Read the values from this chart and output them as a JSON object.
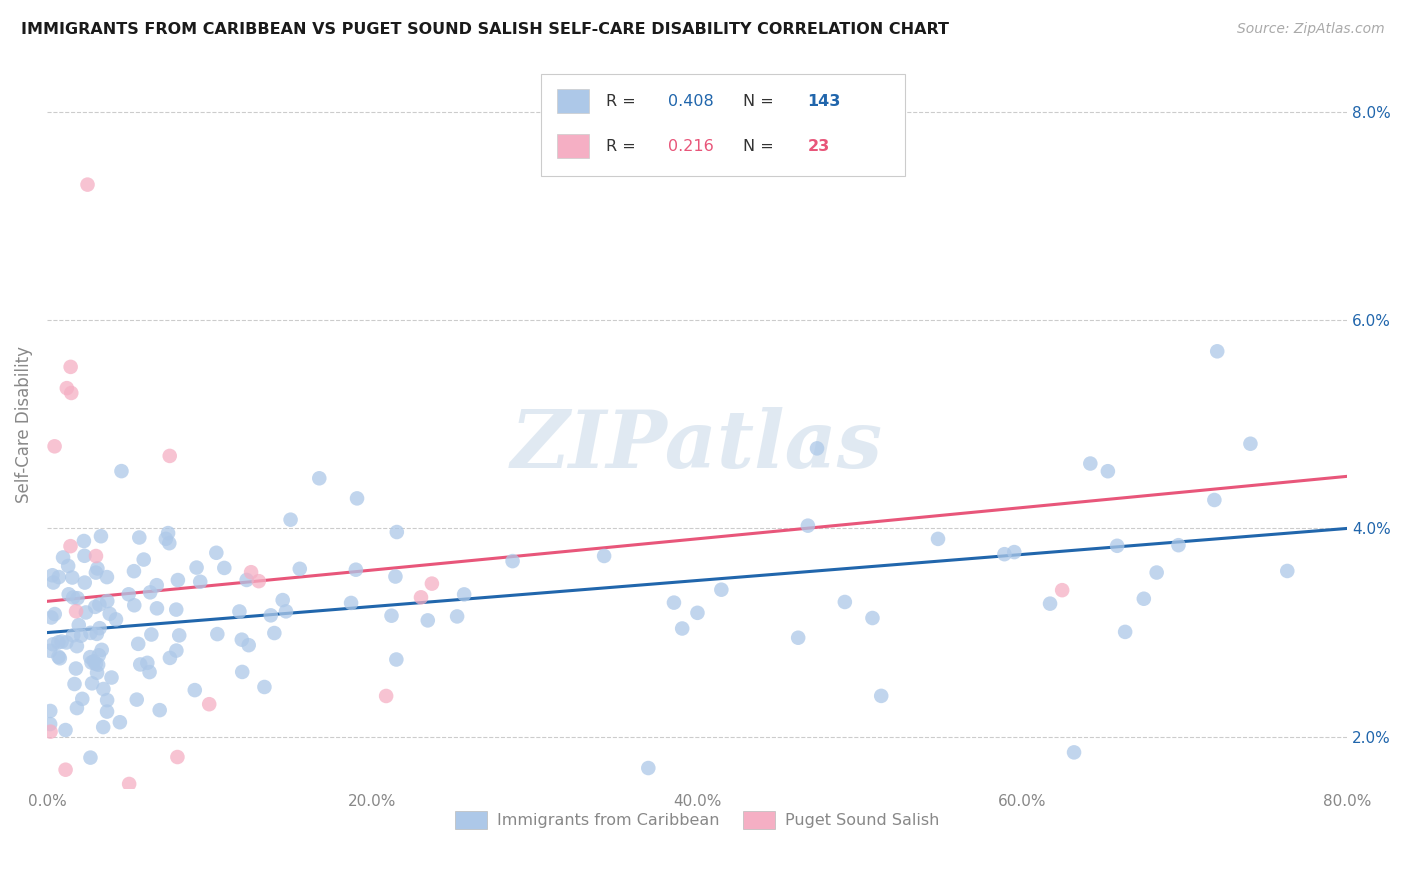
{
  "title": "IMMIGRANTS FROM CARIBBEAN VS PUGET SOUND SALISH SELF-CARE DISABILITY CORRELATION CHART",
  "source": "Source: ZipAtlas.com",
  "ylabel": "Self-Care Disability",
  "legend_blue_R": "0.408",
  "legend_blue_N": "143",
  "legend_pink_R": "0.216",
  "legend_pink_N": "23",
  "legend_label_blue": "Immigrants from Caribbean",
  "legend_label_pink": "Puget Sound Salish",
  "blue_color": "#adc8e8",
  "pink_color": "#f5afc4",
  "blue_line_color": "#2166ac",
  "pink_line_color": "#e8567a",
  "watermark": "ZIPatlas",
  "xlim": [
    0,
    80
  ],
  "ylim": [
    1.5,
    8.5
  ],
  "xticks": [
    0,
    20,
    40,
    60,
    80
  ],
  "xtick_labels": [
    "0.0%",
    "20.0%",
    "40.0%",
    "60.0%",
    "80.0%"
  ],
  "yticks": [
    2.0,
    4.0,
    6.0,
    8.0
  ],
  "ytick_labels": [
    "2.0%",
    "4.0%",
    "6.0%",
    "8.0%"
  ],
  "background_color": "#ffffff",
  "grid_color": "#cccccc",
  "blue_line_start_y": 3.0,
  "blue_line_end_y": 4.0,
  "pink_line_start_y": 3.3,
  "pink_line_end_y": 4.5
}
